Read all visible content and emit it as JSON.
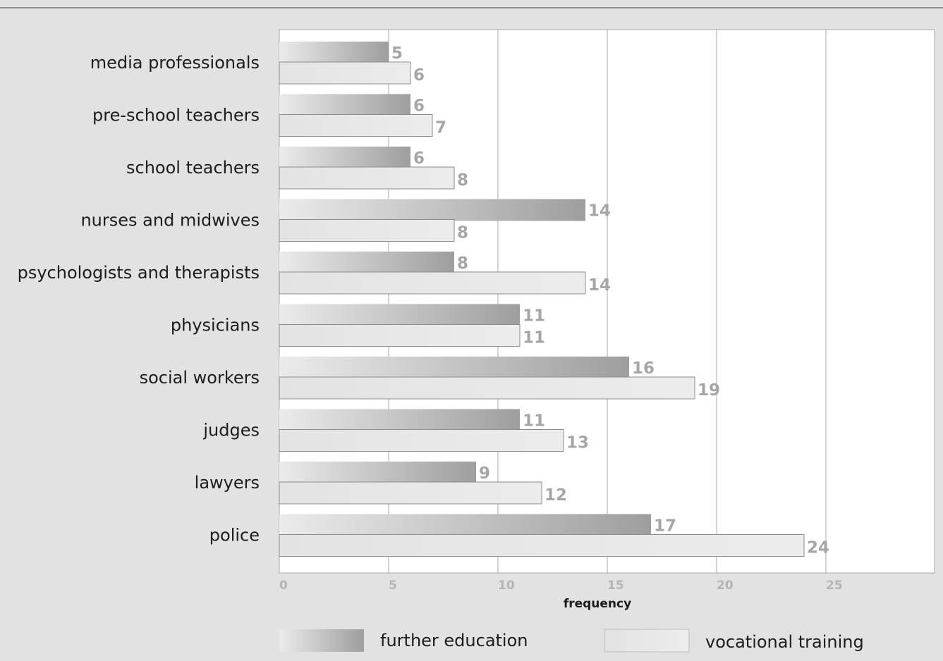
{
  "chart_data": {
    "type": "bar",
    "orientation": "horizontal",
    "categories": [
      "media professionals",
      "pre-school teachers",
      "school teachers",
      "nurses and midwives",
      "psychologists and therapists",
      "physicians",
      "social workers",
      "judges",
      "lawyers",
      "police"
    ],
    "series": [
      {
        "name": "further education",
        "values": [
          5,
          6,
          6,
          14,
          8,
          11,
          16,
          11,
          9,
          17
        ]
      },
      {
        "name": "vocational training",
        "values": [
          6,
          7,
          8,
          8,
          14,
          11,
          19,
          13,
          12,
          24
        ]
      }
    ],
    "xlabel": "frequency",
    "xlim": [
      0,
      30
    ],
    "xticks": [
      0,
      5,
      10,
      15,
      20,
      25
    ],
    "grid": true,
    "legend_position": "bottom",
    "data_labels": true
  },
  "colors": {
    "background": "#e2e2e2",
    "plot_background": "#ffffff",
    "further_education_dark": "#9e9e9e",
    "further_education_light": "#ebebeb",
    "vocational_training": "#e8e8e8",
    "bar_border": "#8c8c8c",
    "gridline": "#a8a8a8",
    "value_label": "#a6a6a6"
  }
}
